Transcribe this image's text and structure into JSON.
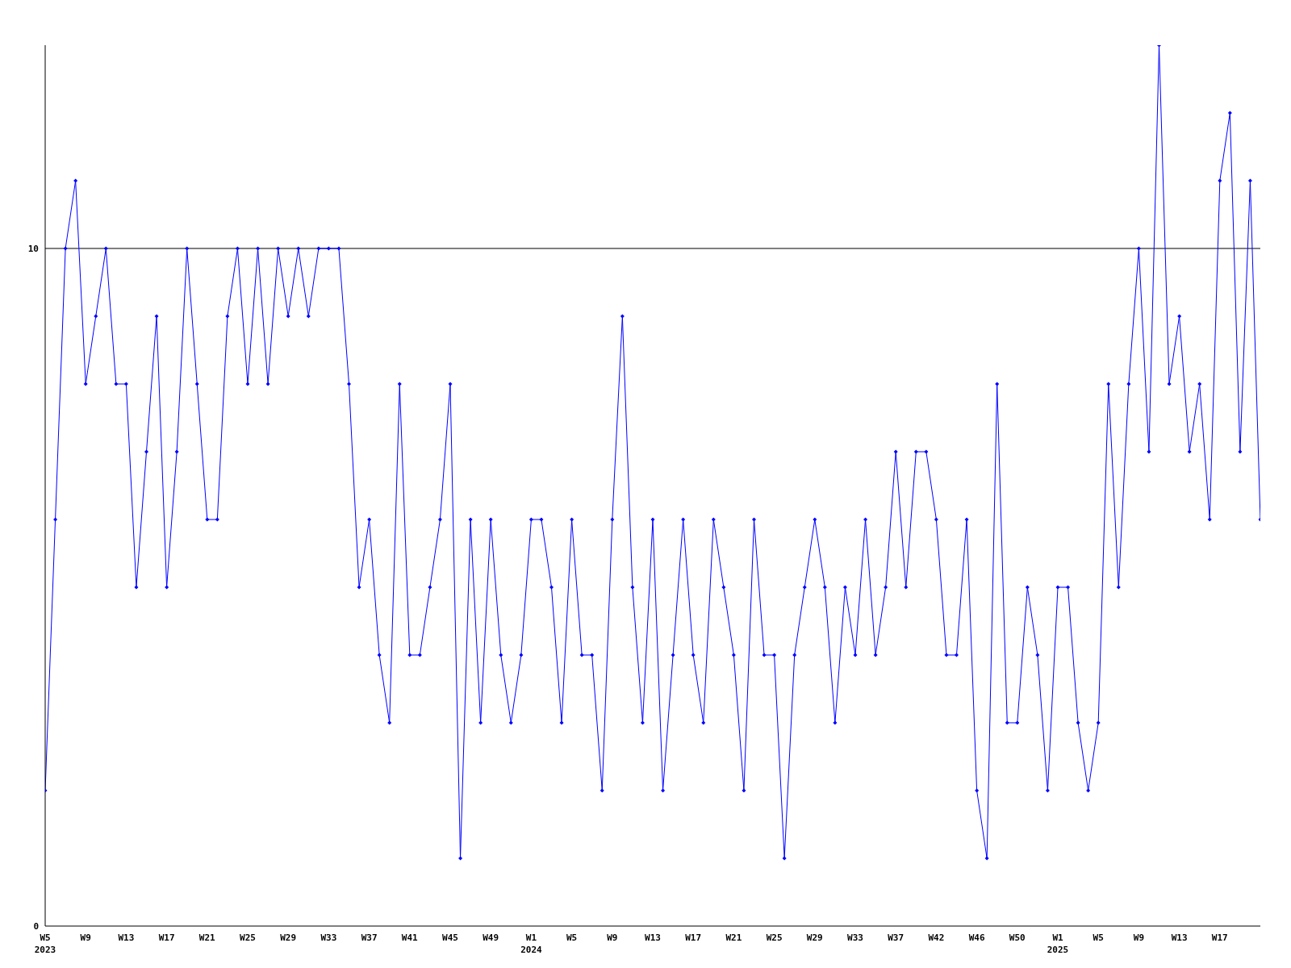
{
  "chart_data": {
    "type": "line",
    "categories": [
      "W5\n2023",
      null,
      null,
      null,
      "W9",
      null,
      null,
      null,
      "W13",
      null,
      null,
      null,
      "W17",
      null,
      null,
      null,
      "W21",
      null,
      null,
      null,
      "W25",
      null,
      null,
      null,
      "W29",
      null,
      null,
      null,
      "W33",
      null,
      null,
      null,
      "W37",
      null,
      null,
      null,
      "W41",
      null,
      null,
      null,
      "W45",
      null,
      null,
      null,
      "W49",
      null,
      null,
      null,
      "W1\n2024",
      null,
      null,
      null,
      "W5",
      null,
      null,
      null,
      "W9",
      null,
      null,
      null,
      "W13",
      null,
      null,
      null,
      "W17",
      null,
      null,
      null,
      "W21",
      null,
      null,
      null,
      "W25",
      null,
      null,
      null,
      "W29",
      null,
      null,
      null,
      "W33",
      null,
      null,
      null,
      "W37",
      null,
      null,
      null,
      "W42",
      null,
      null,
      null,
      "W46",
      null,
      null,
      null,
      "W50",
      null,
      null,
      null,
      "W1\n2025",
      null,
      null,
      null,
      "W5",
      null,
      null,
      null,
      "W9",
      null,
      null,
      null,
      "W13",
      null,
      null,
      null,
      "W17",
      null,
      null,
      null,
      null
    ],
    "values": [
      2,
      6,
      10,
      11,
      8,
      9,
      10,
      8,
      8,
      5,
      7,
      9,
      5,
      7,
      10,
      8,
      6,
      6,
      9,
      10,
      8,
      10,
      8,
      10,
      9,
      10,
      9,
      10,
      10,
      10,
      8,
      5,
      6,
      4,
      3,
      8,
      4,
      4,
      5,
      6,
      8,
      1,
      6,
      3,
      6,
      4,
      3,
      4,
      6,
      6,
      5,
      3,
      6,
      4,
      4,
      2,
      6,
      9,
      5,
      3,
      6,
      2,
      4,
      6,
      4,
      3,
      6,
      5,
      4,
      2,
      6,
      4,
      4,
      1,
      4,
      5,
      6,
      5,
      3,
      5,
      4,
      6,
      4,
      5,
      7,
      5,
      7,
      7,
      6,
      4,
      4,
      6,
      2,
      1,
      8,
      3,
      3,
      5,
      4,
      2,
      5,
      5,
      3,
      2,
      3,
      8,
      5,
      8,
      10,
      7,
      13,
      8,
      9,
      7,
      8,
      6,
      11,
      12,
      7,
      11,
      6
    ],
    "color": "#0000ff",
    "ylim": [
      0,
      13
    ],
    "yticks": [
      0,
      10
    ],
    "grid": "y",
    "marker": "diamond",
    "line_style": "solid"
  }
}
